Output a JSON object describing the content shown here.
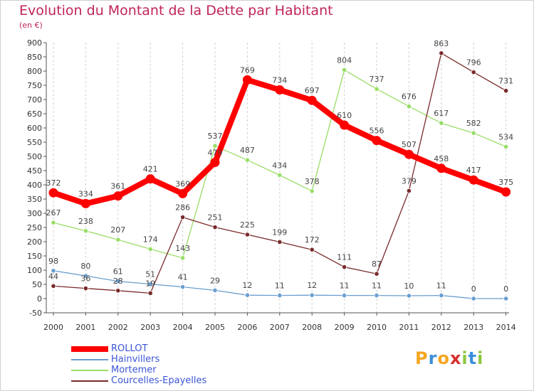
{
  "header": {
    "title": "Evolution du Montant de la Dette par Habitant",
    "subtitle": "(en €)"
  },
  "logo": {
    "text": "Proxiti",
    "colors": [
      "#f6a623",
      "#3c8fd8",
      "#f6a623",
      "#d82e2e",
      "#8cc63f",
      "#3c8fd8",
      "#8cc63f"
    ]
  },
  "chart_data": {
    "type": "line",
    "title": "Evolution du Montant de la Dette par Habitant",
    "subtitle": "(en €)",
    "xlabel": "",
    "ylabel": "",
    "x": [
      2000,
      2001,
      2002,
      2003,
      2004,
      2005,
      2006,
      2007,
      2008,
      2009,
      2010,
      2011,
      2012,
      2013,
      2014
    ],
    "ylim": [
      -50,
      900
    ],
    "ytick_step": 50,
    "grid": "dashed vertical",
    "legend_position": "bottom-left",
    "series": [
      {
        "name": "ROLLOT",
        "color": "#ff0000",
        "values": [
          372,
          334,
          361,
          421,
          369,
          479,
          769,
          734,
          697,
          610,
          556,
          507,
          458,
          417,
          375
        ]
      },
      {
        "name": "Hainvillers",
        "color": "#6a9ed0",
        "values": [
          98,
          80,
          61,
          51,
          41,
          29,
          12,
          11,
          12,
          11,
          11,
          10,
          11,
          0,
          0
        ]
      },
      {
        "name": "Mortemer",
        "color": "#99dd66",
        "values": [
          267,
          238,
          207,
          174,
          143,
          537,
          487,
          434,
          378,
          804,
          737,
          676,
          617,
          582,
          534
        ]
      },
      {
        "name": "Courcelles-Epayelles",
        "color": "#7a2a2a",
        "values": [
          44,
          36,
          28,
          19,
          286,
          251,
          225,
          199,
          172,
          111,
          87,
          379,
          863,
          796,
          731
        ]
      }
    ]
  }
}
